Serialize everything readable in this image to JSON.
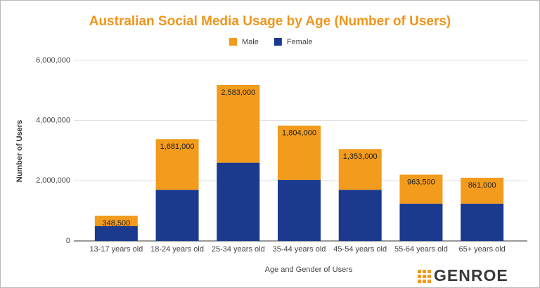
{
  "chart_data": {
    "type": "bar",
    "stacked": true,
    "title": "Australian Social Media Usage by Age (Number of Users)",
    "x_label": "Age and Gender of Users",
    "y_label": "Number of Users",
    "categories": [
      "13-17 years old",
      "18-24 years old",
      "25-34 years old",
      "35-44 years old",
      "45-54 years old",
      "55-64 years old",
      "65+ years old"
    ],
    "series": [
      {
        "name": "Male",
        "color": "#f39b1d",
        "values": [
          348500,
          1681000,
          2583000,
          1804000,
          1353000,
          963500,
          861000
        ],
        "value_labels": [
          "348,500",
          "1,681,000",
          "2,583,000",
          "1,804,000",
          "1,353,000",
          "963,500",
          "861,000"
        ]
      },
      {
        "name": "Female",
        "color": "#1b3a8e",
        "values": [
          490000,
          1700000,
          2600000,
          2030000,
          1700000,
          1240000,
          1240000
        ]
      }
    ],
    "ylim": [
      0,
      6000000
    ],
    "yticks": [
      0,
      {
        "value": 2000000,
        "label": "2,000,000"
      },
      {
        "value": 4000000,
        "label": "4,000,000"
      },
      {
        "value": 6000000,
        "label": "6,000,000"
      }
    ],
    "grid": true,
    "legend": "top"
  },
  "logo": "GENROE"
}
